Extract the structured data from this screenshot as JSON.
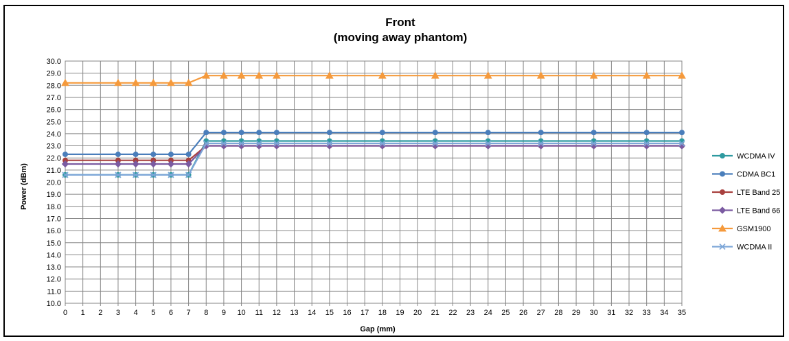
{
  "chart_data": {
    "type": "line",
    "title": "Front",
    "subtitle": "(moving away  phantom)",
    "xlabel": "Gap (mm)",
    "ylabel": "Power (dBm)",
    "xlim": [
      0,
      35
    ],
    "ylim": [
      10.0,
      30.0
    ],
    "y_ticks": [
      "10.0",
      "11.0",
      "12.0",
      "13.0",
      "14.0",
      "15.0",
      "16.0",
      "17.0",
      "18.0",
      "19.0",
      "20.0",
      "21.0",
      "22.0",
      "23.0",
      "24.0",
      "25.0",
      "26.0",
      "27.0",
      "28.0",
      "29.0",
      "30.0"
    ],
    "x_ticks": [
      "0",
      "1",
      "2",
      "3",
      "4",
      "5",
      "6",
      "7",
      "8",
      "9",
      "10",
      "11",
      "12",
      "13",
      "14",
      "15",
      "16",
      "17",
      "18",
      "19",
      "20",
      "21",
      "22",
      "23",
      "24",
      "25",
      "26",
      "27",
      "28",
      "29",
      "30",
      "31",
      "32",
      "33",
      "34",
      "35"
    ],
    "grid": true,
    "legend_position": "right",
    "x": [
      0,
      3,
      4,
      5,
      6,
      7,
      8,
      9,
      10,
      11,
      12,
      15,
      18,
      21,
      24,
      27,
      30,
      33,
      35
    ],
    "series": [
      {
        "name": "WCDMA IV",
        "color": "#2e9aa0",
        "marker": "circle",
        "values": [
          20.6,
          20.6,
          20.6,
          20.6,
          20.6,
          20.6,
          23.4,
          23.4,
          23.4,
          23.4,
          23.4,
          23.4,
          23.4,
          23.4,
          23.4,
          23.4,
          23.4,
          23.4,
          23.4
        ]
      },
      {
        "name": "CDMA BC1",
        "color": "#4a7ebb",
        "marker": "circle",
        "values": [
          22.3,
          22.3,
          22.3,
          22.3,
          22.3,
          22.3,
          24.1,
          24.1,
          24.1,
          24.1,
          24.1,
          24.1,
          24.1,
          24.1,
          24.1,
          24.1,
          24.1,
          24.1,
          24.1
        ]
      },
      {
        "name": "LTE Band 25",
        "color": "#a8403e",
        "marker": "circle",
        "values": [
          21.8,
          21.8,
          21.8,
          21.8,
          21.8,
          21.8,
          23.0,
          23.0,
          23.0,
          23.0,
          23.0,
          23.0,
          23.0,
          23.0,
          23.0,
          23.0,
          23.0,
          23.0,
          23.0
        ]
      },
      {
        "name": "LTE Band 66",
        "color": "#7b5ba1",
        "marker": "diamond",
        "values": [
          21.5,
          21.5,
          21.5,
          21.5,
          21.5,
          21.5,
          23.0,
          23.0,
          23.0,
          23.0,
          23.0,
          23.0,
          23.0,
          23.0,
          23.0,
          23.0,
          23.0,
          23.0,
          23.0
        ]
      },
      {
        "name": "GSM1900",
        "color": "#f59a3c",
        "marker": "triangle",
        "values": [
          28.2,
          28.2,
          28.2,
          28.2,
          28.2,
          28.2,
          28.8,
          28.8,
          28.8,
          28.8,
          28.8,
          28.8,
          28.8,
          28.8,
          28.8,
          28.8,
          28.8,
          28.8,
          28.8
        ]
      },
      {
        "name": "WCDMA II",
        "color": "#7da6d8",
        "marker": "x",
        "values": [
          20.6,
          20.6,
          20.6,
          20.6,
          20.6,
          20.6,
          23.2,
          23.2,
          23.2,
          23.2,
          23.2,
          23.2,
          23.2,
          23.2,
          23.2,
          23.2,
          23.2,
          23.2,
          23.2
        ]
      }
    ]
  }
}
